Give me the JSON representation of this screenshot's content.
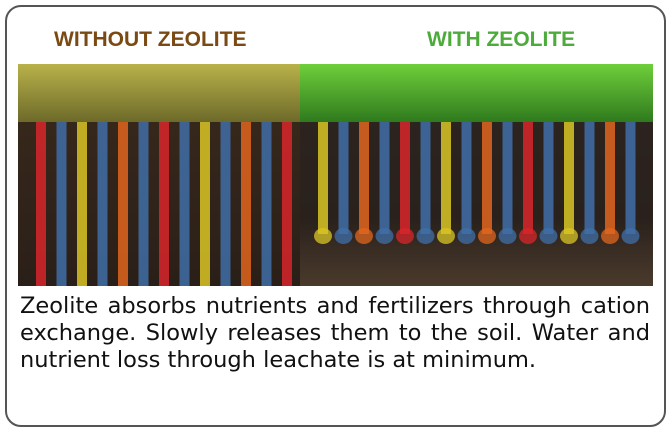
{
  "header": {
    "left_label": "WITHOUT ZEOLITE",
    "right_label": "WITH ZEOLITE"
  },
  "description": "Zeolite absorbs nutrients and fertilizers through cation exchange. Slowly releases them to the soil.  Water and nutrient loss through leachate is at minimum."
}
